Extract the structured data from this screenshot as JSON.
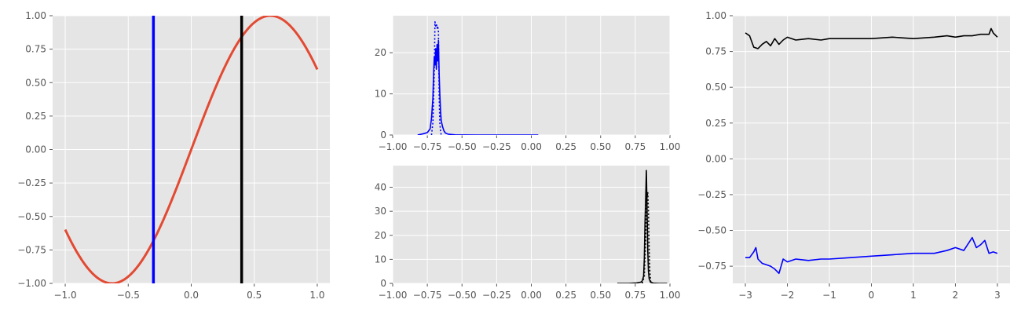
{
  "chart_data": [
    {
      "type": "line",
      "panel": "left",
      "xlim": [
        -1.1,
        1.1
      ],
      "ylim": [
        -1.0,
        1.0
      ],
      "xticks": [
        -1.0,
        -0.5,
        0.0,
        0.5,
        1.0
      ],
      "xtick_labels": [
        "−1.0",
        "−0.5",
        "0.0",
        "0.5",
        "1.0"
      ],
      "yticks": [
        -1.0,
        -0.75,
        -0.5,
        -0.25,
        0.0,
        0.25,
        0.5,
        0.75,
        1.0
      ],
      "ytick_labels": [
        "−1.00",
        "−0.75",
        "−0.50",
        "−0.25",
        "0.00",
        "0.25",
        "0.50",
        "0.75",
        "1.00"
      ],
      "grid": true,
      "series": [
        {
          "kind": "curve",
          "color": "#e24a33",
          "formula": "sin(2.5x)",
          "x_range": [
            -1.0,
            1.0
          ]
        },
        {
          "kind": "vline",
          "color": "#0000ff",
          "x": -0.3
        },
        {
          "kind": "vline",
          "color": "#000000",
          "x": 0.4
        }
      ]
    },
    {
      "type": "line",
      "panel": "middle-top",
      "xlim": [
        -1.0,
        1.0
      ],
      "ylim": [
        0,
        29
      ],
      "xticks": [
        -1.0,
        -0.75,
        -0.5,
        -0.25,
        0.0,
        0.25,
        0.5,
        0.75,
        1.0
      ],
      "xtick_labels": [
        "−1.00",
        "−0.75",
        "−0.50",
        "−0.25",
        "0.00",
        "0.25",
        "0.50",
        "0.75",
        "1.00"
      ],
      "yticks": [
        0,
        10,
        20
      ],
      "ytick_labels": [
        "0",
        "10",
        "20"
      ],
      "grid": true,
      "series": [
        {
          "style": "solid",
          "color": "#0000ff",
          "x": [
            -0.82,
            -0.78,
            -0.75,
            -0.73,
            -0.72,
            -0.71,
            -0.705,
            -0.7,
            -0.695,
            -0.69,
            -0.685,
            -0.68,
            -0.675,
            -0.67,
            -0.665,
            -0.66,
            -0.655,
            -0.65,
            -0.64,
            -0.63,
            -0.62,
            -0.6,
            -0.55,
            -0.4,
            -0.2,
            0.0,
            0.05
          ],
          "y": [
            0,
            0.3,
            0.6,
            1.5,
            4,
            9,
            15,
            19,
            17,
            21,
            16,
            22,
            18,
            23,
            15,
            10,
            6,
            3.5,
            2,
            1,
            0.5,
            0.2,
            0.05,
            0,
            0,
            0,
            0
          ]
        },
        {
          "style": "dotted",
          "color": "#0000ff",
          "x": [
            -0.72,
            -0.71,
            -0.7,
            -0.695,
            -0.69,
            -0.685,
            -0.68,
            -0.675,
            -0.67,
            -0.665,
            -0.66,
            -0.655,
            -0.65
          ],
          "y": [
            0,
            3,
            15,
            27.5,
            26.5,
            27,
            26,
            26.5,
            25,
            10,
            3,
            1,
            0
          ]
        }
      ]
    },
    {
      "type": "line",
      "panel": "middle-bottom",
      "xlim": [
        -1.0,
        1.0
      ],
      "ylim": [
        0,
        49
      ],
      "xticks": [
        -1.0,
        -0.75,
        -0.5,
        -0.25,
        0.0,
        0.25,
        0.5,
        0.75,
        1.0
      ],
      "xtick_labels": [
        "−1.00",
        "−0.75",
        "−0.50",
        "−0.25",
        "0.00",
        "0.25",
        "0.50",
        "0.75",
        "1.00"
      ],
      "yticks": [
        0,
        10,
        20,
        30,
        40
      ],
      "ytick_labels": [
        "0",
        "10",
        "20",
        "30",
        "40"
      ],
      "grid": true,
      "series": [
        {
          "style": "solid",
          "color": "#000000",
          "x": [
            0.62,
            0.7,
            0.76,
            0.79,
            0.8,
            0.81,
            0.815,
            0.82,
            0.825,
            0.83,
            0.835,
            0.84,
            0.845,
            0.85,
            0.86,
            0.88,
            0.92,
            0.98
          ],
          "y": [
            0,
            0,
            0.2,
            0.5,
            1,
            3,
            10,
            25,
            35,
            47,
            30,
            14,
            5,
            2,
            0.5,
            0.1,
            0,
            0
          ]
        },
        {
          "style": "dotted",
          "color": "#000000",
          "x": [
            0.8,
            0.815,
            0.825,
            0.83,
            0.835,
            0.84,
            0.845,
            0.85,
            0.855,
            0.86,
            0.87
          ],
          "y": [
            0,
            3,
            18,
            33,
            36,
            38,
            30,
            15,
            5,
            1,
            0
          ]
        }
      ]
    },
    {
      "type": "line",
      "panel": "right",
      "xlim": [
        -3.3,
        3.3
      ],
      "ylim": [
        -0.87,
        1.0
      ],
      "xticks": [
        -3,
        -2,
        -1,
        0,
        1,
        2,
        3
      ],
      "xtick_labels": [
        "−3",
        "−2",
        "−1",
        "0",
        "1",
        "2",
        "3"
      ],
      "yticks": [
        -0.75,
        -0.5,
        -0.25,
        0.0,
        0.25,
        0.5,
        0.75,
        1.0
      ],
      "ytick_labels": [
        "−0.75",
        "−0.50",
        "−0.25",
        "0.00",
        "0.25",
        "0.50",
        "0.75",
        "1.00"
      ],
      "grid": true,
      "series": [
        {
          "style": "solid",
          "color": "#000000",
          "x": [
            -3.0,
            -2.9,
            -2.8,
            -2.7,
            -2.6,
            -2.5,
            -2.4,
            -2.3,
            -2.2,
            -2.1,
            -2.0,
            -1.8,
            -1.5,
            -1.2,
            -1.0,
            -0.5,
            0.0,
            0.5,
            1.0,
            1.5,
            1.8,
            2.0,
            2.2,
            2.4,
            2.6,
            2.8,
            2.85,
            2.9,
            3.0
          ],
          "y": [
            0.88,
            0.86,
            0.78,
            0.77,
            0.8,
            0.82,
            0.79,
            0.84,
            0.8,
            0.83,
            0.85,
            0.83,
            0.84,
            0.83,
            0.84,
            0.84,
            0.84,
            0.85,
            0.84,
            0.85,
            0.86,
            0.85,
            0.86,
            0.86,
            0.87,
            0.87,
            0.91,
            0.88,
            0.85
          ]
        },
        {
          "style": "solid",
          "color": "#0000ff",
          "x": [
            -3.0,
            -2.9,
            -2.8,
            -2.75,
            -2.7,
            -2.6,
            -2.5,
            -2.4,
            -2.3,
            -2.2,
            -2.1,
            -2.0,
            -1.8,
            -1.5,
            -1.2,
            -1.0,
            -0.5,
            0.0,
            0.5,
            1.0,
            1.5,
            1.8,
            2.0,
            2.2,
            2.4,
            2.5,
            2.6,
            2.7,
            2.8,
            2.9,
            3.0
          ],
          "y": [
            -0.69,
            -0.69,
            -0.65,
            -0.62,
            -0.7,
            -0.73,
            -0.74,
            -0.75,
            -0.77,
            -0.8,
            -0.7,
            -0.72,
            -0.7,
            -0.71,
            -0.7,
            -0.7,
            -0.69,
            -0.68,
            -0.67,
            -0.66,
            -0.66,
            -0.64,
            -0.62,
            -0.64,
            -0.55,
            -0.62,
            -0.6,
            -0.57,
            -0.66,
            -0.65,
            -0.66
          ]
        }
      ]
    }
  ]
}
